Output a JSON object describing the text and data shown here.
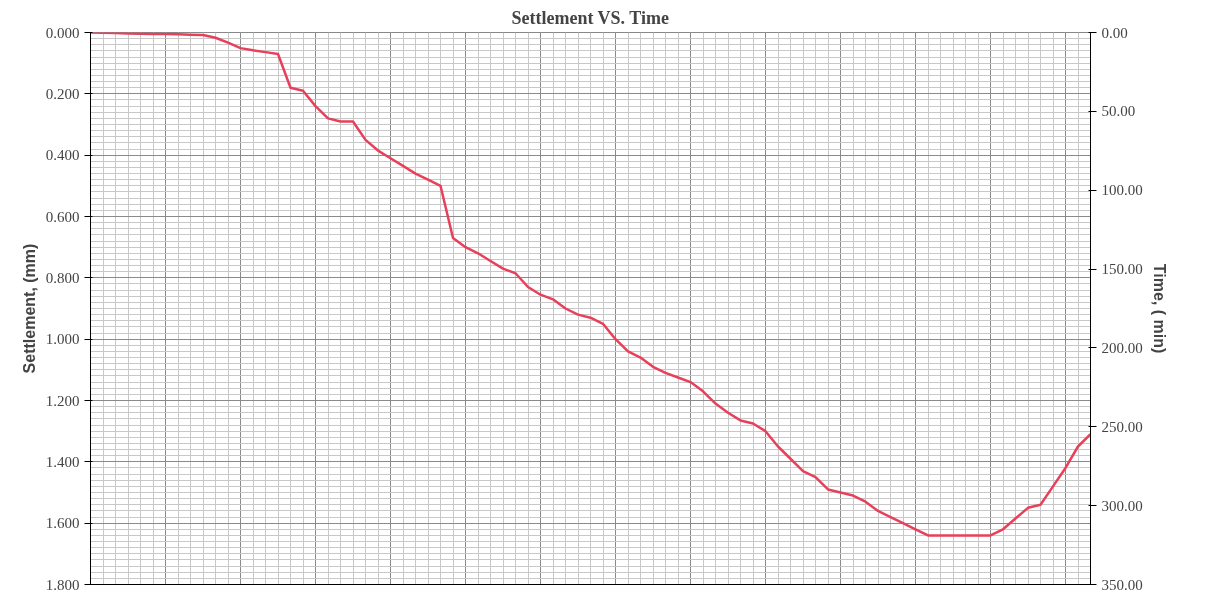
{
  "chart_data": {
    "type": "line",
    "title": "Settlement VS. Time",
    "ylabel": "Settlement, (mm)",
    "y2label": "Time, ( min)",
    "categories": [
      null,
      null,
      null,
      null,
      null,
      null,
      null,
      null,
      null,
      null,
      null,
      null,
      null,
      null,
      null,
      null,
      null,
      null,
      null,
      null,
      null,
      null,
      null,
      null,
      null,
      null,
      null,
      null,
      null,
      null,
      null,
      null,
      null,
      null,
      null,
      null,
      null,
      null,
      null,
      null,
      null,
      null,
      null,
      null,
      null,
      null,
      null,
      null,
      null,
      null,
      null,
      null,
      null,
      null,
      null,
      null,
      null,
      null,
      null,
      null,
      null,
      null,
      null,
      null,
      null,
      null,
      null,
      null,
      null,
      null,
      null,
      null,
      null,
      null,
      null,
      null,
      null,
      null,
      null,
      null,
      null
    ],
    "series": [
      {
        "color": "#e8405a",
        "values": [
          0.0,
          0.001,
          0.002,
          0.003,
          0.004,
          0.005,
          0.005,
          0.006,
          0.007,
          0.008,
          0.017,
          0.033,
          0.051,
          0.058,
          0.064,
          0.07,
          0.18,
          0.19,
          0.24,
          0.28,
          0.29,
          0.29,
          0.35,
          0.385,
          0.41,
          0.435,
          0.46,
          0.48,
          0.5,
          0.67,
          0.7,
          0.72,
          0.745,
          0.77,
          0.785,
          0.83,
          0.855,
          0.87,
          0.9,
          0.92,
          0.93,
          0.95,
          1.0,
          1.04,
          1.06,
          1.09,
          1.11,
          1.125,
          1.14,
          1.17,
          1.21,
          1.24,
          1.265,
          1.275,
          1.3,
          1.35,
          1.39,
          1.43,
          1.45,
          1.49,
          1.5,
          1.51,
          1.53,
          1.56,
          1.58,
          1.6,
          1.62,
          1.64,
          1.64,
          1.64,
          1.64,
          1.64,
          1.64,
          1.62,
          1.585,
          1.55,
          1.54,
          1.48,
          1.42,
          1.35,
          1.31
        ]
      }
    ],
    "ylim": [
      1.8,
      0
    ],
    "yticks": [
      {
        "value": 0,
        "label": "0.000"
      },
      {
        "value": 0.2,
        "label": "0.200"
      },
      {
        "value": 0.4,
        "label": "0.400"
      },
      {
        "value": 0.6,
        "label": "0.600"
      },
      {
        "value": 0.8,
        "label": "0.800"
      },
      {
        "value": 1.0,
        "label": "1.000"
      },
      {
        "value": 1.2,
        "label": "1.200"
      },
      {
        "value": 1.4,
        "label": "1.400"
      },
      {
        "value": 1.6,
        "label": "1.600"
      },
      {
        "value": 1.8,
        "label": "1.800"
      }
    ],
    "y2lim": [
      350,
      0
    ],
    "y2ticks": [
      {
        "value": 0,
        "label": "0.00"
      },
      {
        "value": 50,
        "label": "50.00"
      },
      {
        "value": 100,
        "label": "100.00"
      },
      {
        "value": 150,
        "label": "150.00"
      },
      {
        "value": 200,
        "label": "200.00"
      },
      {
        "value": 250,
        "label": "250.00"
      },
      {
        "value": 300,
        "label": "300.00"
      },
      {
        "value": 350,
        "label": "350.00"
      }
    ],
    "grid": true,
    "tick_labels": "y",
    "marker": "none",
    "line_style": "solid"
  }
}
